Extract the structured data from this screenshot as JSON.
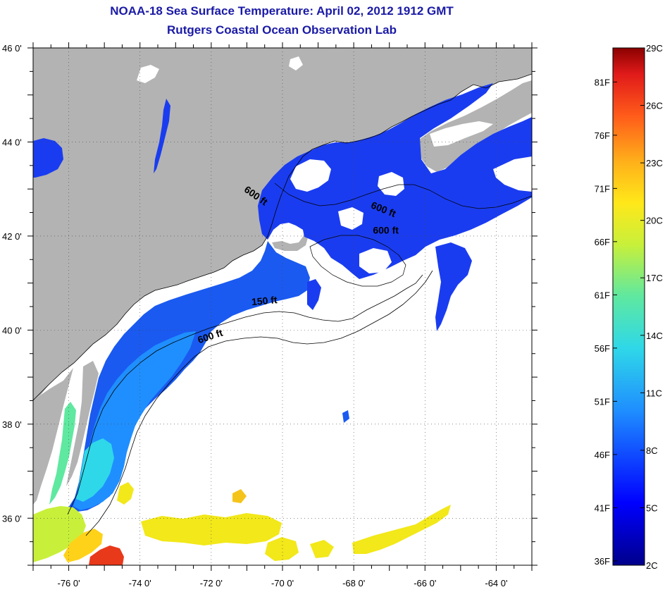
{
  "header": {
    "title": "NOAA-18 Sea Surface Temperature:  April 02, 2012 1912 GMT",
    "subtitle": "Rutgers Coastal Ocean Observation Lab"
  },
  "map": {
    "longitude_labels": [
      "-76 0'",
      "-74 0'",
      "-72 0'",
      "-70 0'",
      "-68 0'",
      "-66 0'",
      "-64 0'"
    ],
    "latitude_labels": [
      "46 0'",
      "44 0'",
      "42 0'",
      "40 0'",
      "38 0'",
      "36 0'"
    ],
    "lon_range": [
      -77,
      -63
    ],
    "lat_range": [
      35,
      46
    ],
    "contour_labels": [
      {
        "text": "600 ft",
        "lon": -70.8,
        "lat": 42.8,
        "angle": 35
      },
      {
        "text": "600 ft",
        "lon": -67.2,
        "lat": 42.5,
        "angle": 22
      },
      {
        "text": "600 ft",
        "lon": -67.1,
        "lat": 42.05,
        "angle": 0
      },
      {
        "text": "150 ft",
        "lon": -70.5,
        "lat": 40.55,
        "angle": -5
      },
      {
        "text": "600 ft",
        "lon": -72.0,
        "lat": 39.8,
        "angle": -18
      }
    ],
    "colors": {
      "land": "#b3b3b3",
      "ocean_no_data": "#ffffff",
      "cold_water": "#1a3cf0",
      "mid_water": "#1f8fff",
      "warm_water": "#f2e81a",
      "hot_water": "#e8391a"
    }
  },
  "colorbar": {
    "fahrenheit_labels": [
      "81F",
      "76F",
      "71F",
      "66F",
      "61F",
      "56F",
      "51F",
      "46F",
      "41F",
      "36F"
    ],
    "celsius_labels": [
      "29C",
      "26C",
      "23C",
      "20C",
      "17C",
      "14C",
      "11C",
      "8C",
      "5C",
      "2C"
    ]
  }
}
